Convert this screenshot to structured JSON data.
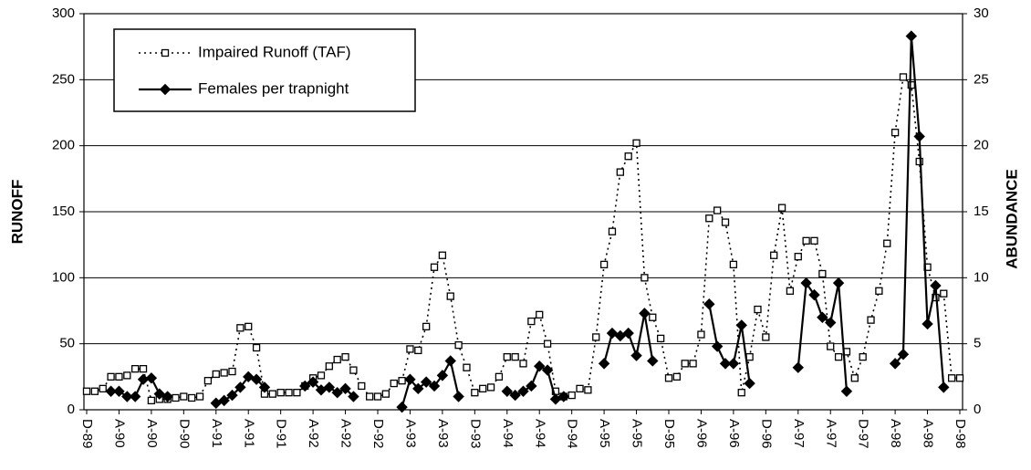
{
  "chart_data": {
    "type": "line",
    "y_label": "RUNOFF",
    "y2_label": "ABUNDANCE",
    "categories": [
      "D-89",
      null,
      null,
      null,
      "A-90",
      null,
      null,
      null,
      "A-90",
      null,
      null,
      null,
      "D-90",
      null,
      null,
      null,
      "A-91",
      null,
      null,
      null,
      "A-91",
      null,
      null,
      null,
      "D-91",
      null,
      null,
      null,
      "A-92",
      null,
      null,
      null,
      "A-92",
      null,
      null,
      null,
      "D-92",
      null,
      null,
      null,
      "A-93",
      null,
      null,
      null,
      "A-93",
      null,
      null,
      null,
      "D-93",
      null,
      null,
      null,
      "A-94",
      null,
      null,
      null,
      "A-94",
      null,
      null,
      null,
      "D-94",
      null,
      null,
      null,
      "A-95",
      null,
      null,
      null,
      "A-95",
      null,
      null,
      null,
      "D-95",
      null,
      null,
      null,
      "A-96",
      null,
      null,
      null,
      "A-96",
      null,
      null,
      null,
      "D-96",
      null,
      null,
      null,
      "A-97",
      null,
      null,
      null,
      "A-97",
      null,
      null,
      null,
      "D-97",
      null,
      null,
      null,
      "A-98",
      null,
      null,
      null,
      "A-98",
      null,
      null,
      null,
      "D-98"
    ],
    "series": [
      {
        "name": "Impaired Runoff (TAF)",
        "color": "#000000",
        "line": "dotted",
        "marker": "square",
        "axis": "y",
        "values": [
          14,
          14,
          16,
          25,
          25,
          26,
          31,
          31,
          7,
          8,
          8,
          9,
          10,
          9,
          10,
          22,
          27,
          28,
          29,
          62,
          63,
          47,
          12,
          12,
          13,
          13,
          13,
          18,
          24,
          26,
          33,
          38,
          40,
          30,
          18,
          10,
          10,
          12,
          20,
          22,
          46,
          45,
          63,
          108,
          117,
          86,
          49,
          32,
          13,
          16,
          17,
          25,
          40,
          40,
          35,
          67,
          72,
          50,
          14,
          10,
          11,
          16,
          15,
          55,
          110,
          135,
          180,
          192,
          202,
          100,
          70,
          54,
          24,
          25,
          35,
          35,
          57,
          145,
          151,
          142,
          110,
          13,
          40,
          76,
          55,
          117,
          153,
          90,
          116,
          128,
          128,
          103,
          48,
          40,
          44,
          24,
          40,
          68,
          90,
          126,
          210,
          252,
          246,
          188,
          108,
          85,
          88,
          24,
          24
        ]
      },
      {
        "name": "Females per trapnight",
        "color": "#000000",
        "line": "solid",
        "marker": "diamond",
        "axis": "y2",
        "values": [
          null,
          null,
          null,
          1.4,
          1.4,
          1.0,
          1.0,
          2.3,
          2.4,
          1.2,
          1.0,
          null,
          null,
          null,
          null,
          null,
          0.5,
          0.7,
          1.1,
          1.7,
          2.5,
          2.3,
          1.7,
          null,
          null,
          null,
          null,
          1.8,
          2.1,
          1.5,
          1.7,
          1.3,
          1.6,
          1.0,
          null,
          null,
          null,
          null,
          null,
          0.2,
          2.3,
          1.6,
          2.1,
          1.8,
          2.6,
          3.7,
          1.0,
          null,
          null,
          null,
          null,
          null,
          1.4,
          1.1,
          1.4,
          1.8,
          3.3,
          3.0,
          0.8,
          1.0,
          null,
          null,
          null,
          null,
          3.5,
          5.8,
          5.6,
          5.8,
          4.1,
          7.3,
          3.7,
          null,
          null,
          null,
          null,
          null,
          null,
          8.0,
          4.8,
          3.5,
          3.5,
          6.4,
          2.0,
          null,
          null,
          null,
          null,
          null,
          3.2,
          9.6,
          8.7,
          7.0,
          6.6,
          9.6,
          1.4,
          null,
          null,
          null,
          null,
          null,
          3.5,
          4.2,
          28.3,
          20.7,
          6.5,
          9.4,
          1.7,
          null,
          null
        ]
      }
    ],
    "ylim": [
      0,
      300
    ],
    "yticks": [
      0,
      50,
      100,
      150,
      200,
      250,
      300
    ],
    "y2lim": [
      0,
      30
    ],
    "y2ticks": [
      0,
      5,
      10,
      15,
      20,
      25,
      30
    ],
    "grid": true,
    "legend": "top-left"
  }
}
